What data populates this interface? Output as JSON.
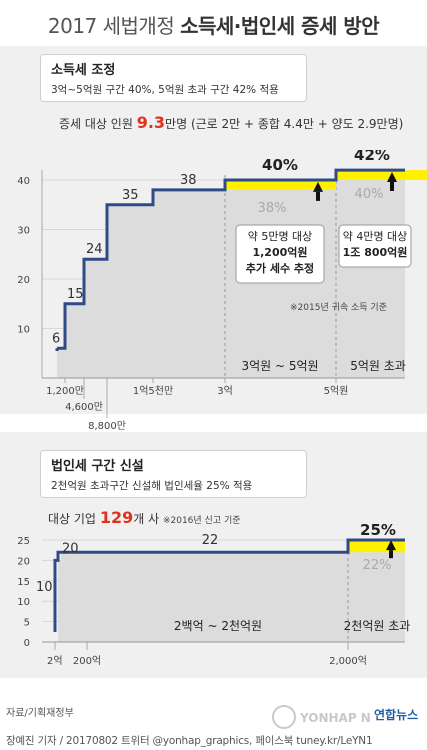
{
  "title": {
    "part1": "2017 세법개정",
    "part2": "소득세·법인세 증세 방안"
  },
  "income": {
    "box_title": "소득세 조정",
    "box_desc": "3억~5억원 구간 40%, 5억원 초과 구간 42% 적용",
    "target_label": "증세 대상 인원",
    "target_value": "9.3",
    "target_tail": "만명 (근로 2만 + 종합 4.4만 + 양도 2.9만명)",
    "callout_left": [
      "약 5만명 대상",
      "1,200억원",
      "추가 세수 추정"
    ],
    "callout_right": [
      "약 4만명 대상",
      "1조 800억원"
    ],
    "footnote": "※2015년 귀속 소득 기준",
    "bracket_label_1": "3억원 ~ 5억원",
    "bracket_label_2": "5억원 초과",
    "new_rates": [
      "40%",
      "42%"
    ],
    "old_rates": [
      "38%",
      "40%"
    ]
  },
  "corp": {
    "box_title": "법인세 구간 신설",
    "box_desc": "2천억원 초과구간 신설해 법인세율 25% 적용",
    "target_label": "대상 기업",
    "target_value": "129",
    "target_tail": "개 사",
    "target_note": "※2016년 신고 기준",
    "bracket_label_1": "2백억 ~ 2천억원",
    "bracket_label_2": "2천억원 초과",
    "new_rate": "25%",
    "old_rate": "22%"
  },
  "chart_data": [
    {
      "type": "line",
      "title": "소득세 조정",
      "y_ticks": [
        0,
        10,
        20,
        30,
        40
      ],
      "ylim": [
        0,
        45
      ],
      "x_tick_labels": [
        "1,200만",
        "4,600만",
        "8,800만",
        "1억5천만",
        "3억",
        "5억원"
      ],
      "steps": [
        {
          "label": "6",
          "value": 6
        },
        {
          "label": "15",
          "value": 15
        },
        {
          "label": "24",
          "value": 24
        },
        {
          "label": "35",
          "value": 35
        },
        {
          "label": "38",
          "value": 38
        },
        {
          "label": "40%",
          "value": 40
        },
        {
          "label": "42%",
          "value": 42
        }
      ],
      "old_rates": [
        38,
        40
      ],
      "new_rates": [
        40,
        42
      ],
      "grid": true
    },
    {
      "type": "line",
      "title": "법인세 구간 신설",
      "y_ticks": [
        0,
        5,
        10,
        15,
        20,
        25
      ],
      "ylim": [
        0,
        27
      ],
      "x_tick_labels": [
        "2억",
        "200억",
        "2,000억"
      ],
      "steps": [
        {
          "label": "10",
          "value": 10
        },
        {
          "label": "20",
          "value": 20
        },
        {
          "label": "22",
          "value": 22
        },
        {
          "label": "25%",
          "value": 25
        }
      ],
      "old_rates": [
        22
      ],
      "new_rates": [
        25
      ],
      "grid": true
    }
  ],
  "footer": {
    "source": "자료/기획재정부",
    "credit": "장예진 기자 / 20170802 트위터 @yonhap_graphics, 페이스북 tuney.kr/LeYN1",
    "logo_text": "연합뉴스",
    "watermark": "YONHAP NEWS"
  },
  "colors": {
    "step_line": "#2e4b86",
    "highlight": "#fff000",
    "red": "#e0311f",
    "panel": "#f0f0f0",
    "bar": "#dcdcdc"
  }
}
